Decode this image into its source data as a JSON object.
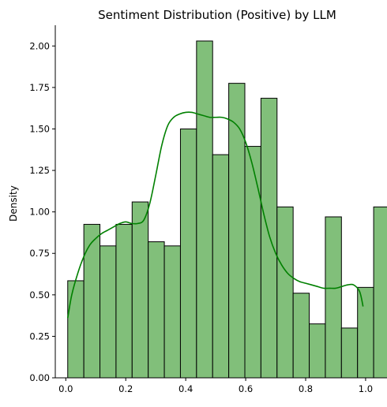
{
  "chart_data": {
    "type": "bar",
    "title": "Sentiment Distribution (Positive) by LLM",
    "xlabel": "",
    "ylabel": "Density",
    "xlim": [
      -0.035,
      1.045
    ],
    "ylim": [
      0,
      2.125
    ],
    "xticks": [
      0.0,
      0.2,
      0.4,
      0.6,
      0.8,
      1.0
    ],
    "xtick_labels": [
      "0.0",
      "0.2",
      "0.4",
      "0.6",
      "0.8",
      "1.0"
    ],
    "yticks": [
      0.0,
      0.25,
      0.5,
      0.75,
      1.0,
      1.25,
      1.5,
      1.75,
      2.0
    ],
    "ytick_labels": [
      "0.00",
      "0.25",
      "0.50",
      "0.75",
      "1.00",
      "1.25",
      "1.50",
      "1.75",
      "2.00"
    ],
    "grid": false,
    "bar_color": "#81bf7a",
    "bar_edge_color": "#000000",
    "kde_color": "#008000",
    "bins": {
      "start": 0.0065,
      "width": 0.0537,
      "values": [
        0.585,
        0.925,
        0.795,
        0.925,
        1.06,
        0.82,
        0.795,
        1.5,
        2.03,
        1.345,
        1.775,
        1.395,
        1.685,
        1.03,
        0.51,
        0.325,
        0.97,
        0.3,
        0.545,
        1.03
      ]
    },
    "kde": {
      "x": [
        0.0065,
        0.02,
        0.04,
        0.06,
        0.08,
        0.1,
        0.12,
        0.14,
        0.16,
        0.18,
        0.2,
        0.22,
        0.24,
        0.26,
        0.28,
        0.3,
        0.32,
        0.34,
        0.36,
        0.38,
        0.4,
        0.42,
        0.44,
        0.46,
        0.48,
        0.5,
        0.52,
        0.54,
        0.56,
        0.58,
        0.6,
        0.62,
        0.64,
        0.66,
        0.68,
        0.7,
        0.72,
        0.74,
        0.76,
        0.78,
        0.8,
        0.82,
        0.84,
        0.86,
        0.88,
        0.9,
        0.92,
        0.94,
        0.96,
        0.98,
        0.9915
      ],
      "y": [
        0.36,
        0.5,
        0.63,
        0.73,
        0.8,
        0.84,
        0.87,
        0.89,
        0.91,
        0.93,
        0.94,
        0.93,
        0.93,
        0.95,
        1.05,
        1.22,
        1.4,
        1.52,
        1.57,
        1.59,
        1.6,
        1.6,
        1.59,
        1.58,
        1.57,
        1.57,
        1.57,
        1.56,
        1.54,
        1.5,
        1.42,
        1.3,
        1.15,
        0.99,
        0.85,
        0.75,
        0.68,
        0.63,
        0.6,
        0.58,
        0.57,
        0.56,
        0.55,
        0.54,
        0.54,
        0.54,
        0.55,
        0.56,
        0.56,
        0.52,
        0.43
      ]
    }
  }
}
